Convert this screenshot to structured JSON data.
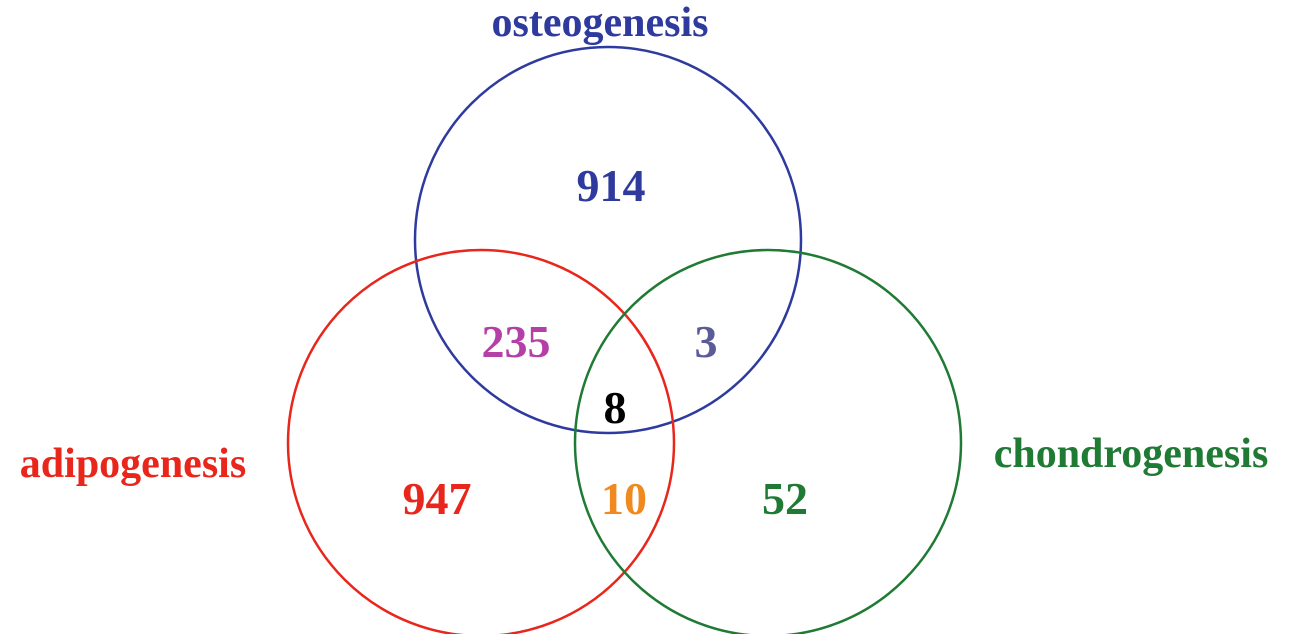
{
  "sets": [
    {
      "key": "osteo",
      "name": "osteogenesis",
      "color": "#2e3a9e"
    },
    {
      "key": "adipo",
      "name": "adipogenesis",
      "color": "#e8261c"
    },
    {
      "key": "chondro",
      "name": "chondrogenesis",
      "color": "#1f7a34"
    }
  ],
  "regions": [
    {
      "key": "osteo_only",
      "sets": [
        "osteogenesis"
      ],
      "count": "914",
      "color": "#2e3a9e"
    },
    {
      "key": "osteo_adipo",
      "sets": [
        "osteogenesis",
        "adipogenesis"
      ],
      "count": "235",
      "color": "#b43fa7"
    },
    {
      "key": "osteo_chondro",
      "sets": [
        "osteogenesis",
        "chondrogenesis"
      ],
      "count": "3",
      "color": "#5b5b9a"
    },
    {
      "key": "all_three",
      "sets": [
        "osteogenesis",
        "adipogenesis",
        "chondrogenesis"
      ],
      "count": "8",
      "color": "#000000"
    },
    {
      "key": "adipo_only",
      "sets": [
        "adipogenesis"
      ],
      "count": "947",
      "color": "#e8261c"
    },
    {
      "key": "adipo_chondro",
      "sets": [
        "adipogenesis",
        "chondrogenesis"
      ],
      "count": "10",
      "color": "#f08a1e"
    },
    {
      "key": "chondro_only",
      "sets": [
        "chondrogenesis"
      ],
      "count": "52",
      "color": "#1f7a34"
    }
  ]
}
